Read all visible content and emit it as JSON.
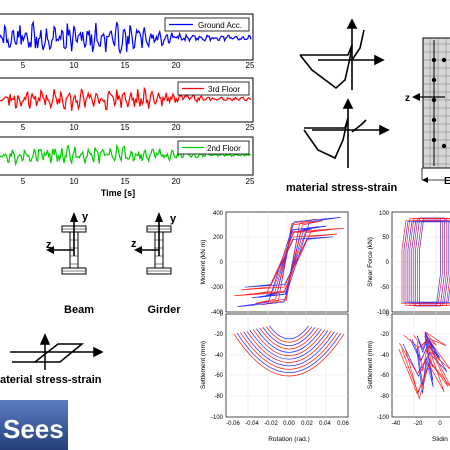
{
  "ground_motion_panel": {
    "legend_ground": "Ground Acc.",
    "legend_3rd": "3rd Floor",
    "legend_2nd": "2nd Floor",
    "x_ticks": [
      "5",
      "10",
      "15",
      "20",
      "25"
    ],
    "x_label": "Time [s]",
    "colors": {
      "ground": "#0000ff",
      "third": "#ff0000",
      "second": "#00cc00"
    }
  },
  "section_panel": {
    "caption": "material stress-strain",
    "axis_z": "z",
    "axis_y": "y",
    "cut_label": "E"
  },
  "sections": {
    "beam_label": "Beam",
    "girder_label": "Girder",
    "axis_y": "y",
    "axis_z": "z"
  },
  "bottom_caption": "aterial stress-strain",
  "logo_text": "Sees",
  "hysteresis_left": {
    "top_ylabel": "Moment (kN m)",
    "top_yticks": [
      "400",
      "200",
      "0",
      "-200",
      "-400"
    ],
    "bottom_ylabel": "Settlement (mm)",
    "bottom_yticks": [
      "0",
      "-20",
      "-40",
      "-60",
      "-80",
      "-100"
    ],
    "xticks": [
      "-0.06",
      "-0.04",
      "-0.02",
      "0.00",
      "0.02",
      "0.04",
      "0.06"
    ],
    "xlabel": "Rotation (rad.)"
  },
  "hysteresis_right": {
    "top_ylabel": "Shear Force (kN)",
    "top_yticks": [
      "100",
      "50",
      "0",
      "-50",
      "-100"
    ],
    "bottom_ylabel": "Settlement (mm)",
    "bottom_yticks": [
      "0",
      "-20",
      "-40",
      "-60",
      "-80",
      "-100"
    ],
    "xticks": [
      "-40",
      "-20",
      "0"
    ],
    "xlabel": "Slidin"
  }
}
